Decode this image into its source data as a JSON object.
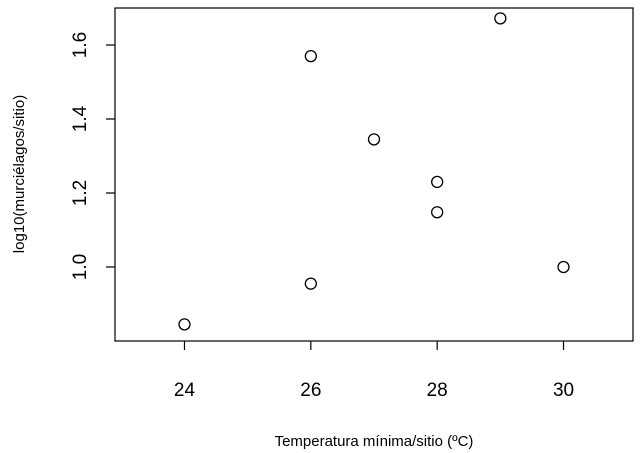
{
  "chart_data": {
    "type": "scatter",
    "title": "",
    "xlabel": "Temperatura mínima/sitio (ºC)",
    "ylabel": "log10(murciélagos/sitio)",
    "xlim": [
      22.9,
      31.1
    ],
    "ylim": [
      0.8,
      1.7
    ],
    "xticks": [
      24,
      26,
      28,
      30
    ],
    "yticks": [
      1.0,
      1.2,
      1.4,
      1.6
    ],
    "xtick_labels": [
      "24",
      "26",
      "28",
      "30"
    ],
    "ytick_labels": [
      "1.0",
      "1.2",
      "1.4",
      "1.6"
    ],
    "grid": false,
    "legend": "none",
    "series": [
      {
        "x": [
          24,
          26,
          26,
          27,
          28,
          28,
          29,
          30
        ],
        "y": [
          0.845,
          0.955,
          1.57,
          1.345,
          1.23,
          1.148,
          1.672,
          1.0
        ]
      }
    ],
    "colors": {
      "marker_stroke": "#000000",
      "axis": "#000000",
      "background": "#ffffff"
    }
  }
}
